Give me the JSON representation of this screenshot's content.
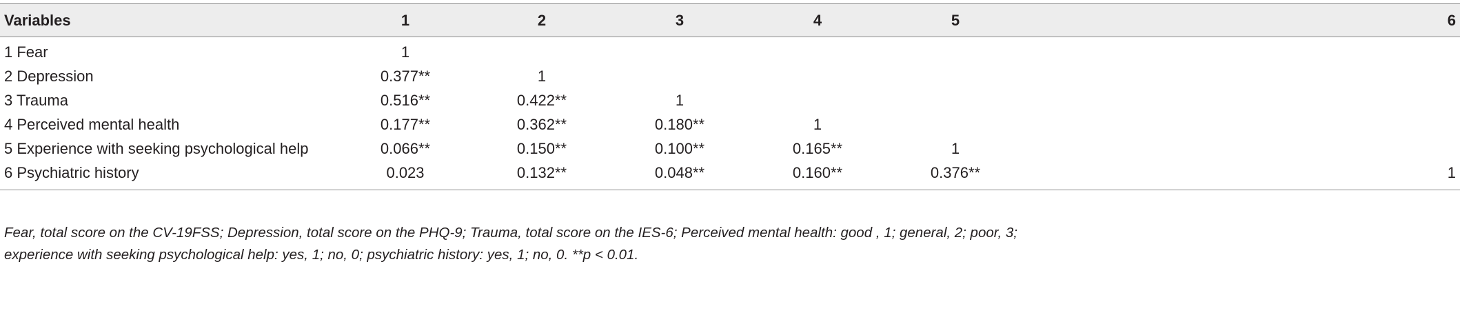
{
  "table": {
    "headers": [
      "Variables",
      "1",
      "2",
      "3",
      "4",
      "5",
      "6"
    ],
    "rows": [
      [
        "1 Fear",
        "1",
        "",
        "",
        "",
        "",
        ""
      ],
      [
        "2 Depression",
        "0.377**",
        "1",
        "",
        "",
        "",
        ""
      ],
      [
        "3 Trauma",
        "0.516**",
        "0.422**",
        "1",
        "",
        "",
        ""
      ],
      [
        "4 Perceived mental health",
        "0.177**",
        "0.362**",
        "0.180**",
        "1",
        "",
        ""
      ],
      [
        "5 Experience with seeking psychological help",
        "0.066**",
        "0.150**",
        "0.100**",
        "0.165**",
        "1",
        ""
      ],
      [
        "6 Psychiatric history",
        "0.023",
        "0.132**",
        "0.048**",
        "0.160**",
        "0.376**",
        "1"
      ]
    ]
  },
  "footnote": {
    "line1": "Fear, total score on the CV-19FSS; Depression, total score on the PHQ-9; Trauma, total score on the IES-6; Perceived mental health: good , 1; general, 2; poor, 3;",
    "line2": "experience with seeking psychological help: yes, 1; no, 0; psychiatric history: yes, 1; no, 0. **p < 0.01."
  },
  "colors": {
    "header_background": "#ededed",
    "rule": "#8a8a8a",
    "text": "#231f20"
  }
}
